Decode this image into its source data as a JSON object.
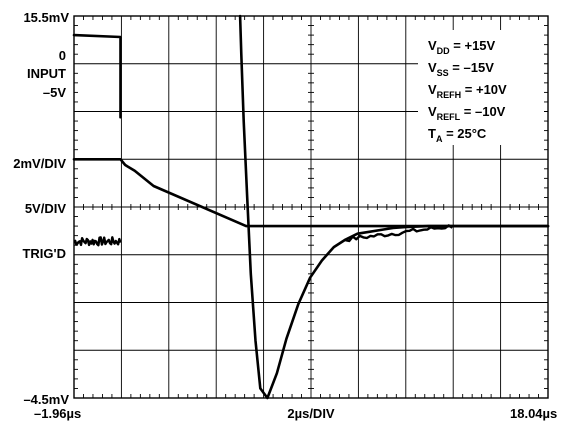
{
  "chart_data": {
    "type": "line",
    "left_axis": {
      "top_label": "15.5mV",
      "zero_label": "0",
      "input_label": "INPUT",
      "minus5_label": "–5V",
      "scale_label": "2mV/DIV",
      "trig_scale_label": "5V/DIV",
      "trig_label": "TRIG'D",
      "bottom_label": "–4.5mV"
    },
    "x_axis": {
      "start_label": "–1.96µs",
      "scale_label": "2µs/DIV",
      "end_label": "18.04µs",
      "xlim": [
        -1.96,
        18.04
      ],
      "unit": "µs",
      "divisions": 10
    },
    "y_axis": {
      "ylim": [
        -4.5,
        15.5
      ],
      "unit": "mV",
      "divisions": 8
    },
    "conditions": [
      {
        "sym": "V",
        "sub": "DD",
        "value": " = +15V"
      },
      {
        "sym": "V",
        "sub": "SS",
        "value": " = –15V"
      },
      {
        "sym": "V",
        "sub": "REFH",
        "value": " = +10V"
      },
      {
        "sym": "V",
        "sub": "REFL",
        "value": " = –10V"
      },
      {
        "sym": "T",
        "sub": "A",
        "value": " = 25°C"
      }
    ],
    "grid": true,
    "series": [
      {
        "x": [
          -1.96,
          0.0,
          0.0
        ],
        "y": [
          14.5,
          14.4,
          10.2
        ]
      },
      {
        "x": [
          -1.96,
          0.0,
          0.2,
          0.6,
          1.4,
          5.3,
          18.04
        ],
        "y": [
          8.0,
          8.0,
          7.7,
          7.4,
          6.6,
          4.5,
          4.5
        ]
      },
      {
        "x": [
          5.05,
          5.1,
          5.2,
          5.35,
          5.5,
          5.7,
          5.9,
          6.2,
          6.6,
          7.0,
          7.5,
          8.0,
          8.5,
          9.0,
          9.5,
          10.0,
          10.5,
          11.0,
          11.5,
          12.0,
          13.0,
          14.0,
          15.0,
          16.0,
          18.04
        ],
        "y": [
          15.5,
          13.5,
          10.0,
          6.0,
          2.0,
          -1.5,
          -4.0,
          -4.5,
          -3.2,
          -1.4,
          0.4,
          1.8,
          2.7,
          3.4,
          3.8,
          4.1,
          4.2,
          4.3,
          4.4,
          4.45,
          4.5,
          4.5,
          4.5,
          4.5,
          4.5
        ]
      }
    ],
    "noise_segment": {
      "x": [
        -1.96,
        0.0
      ],
      "y_center": 3.7,
      "amplitude": 0.22
    }
  }
}
